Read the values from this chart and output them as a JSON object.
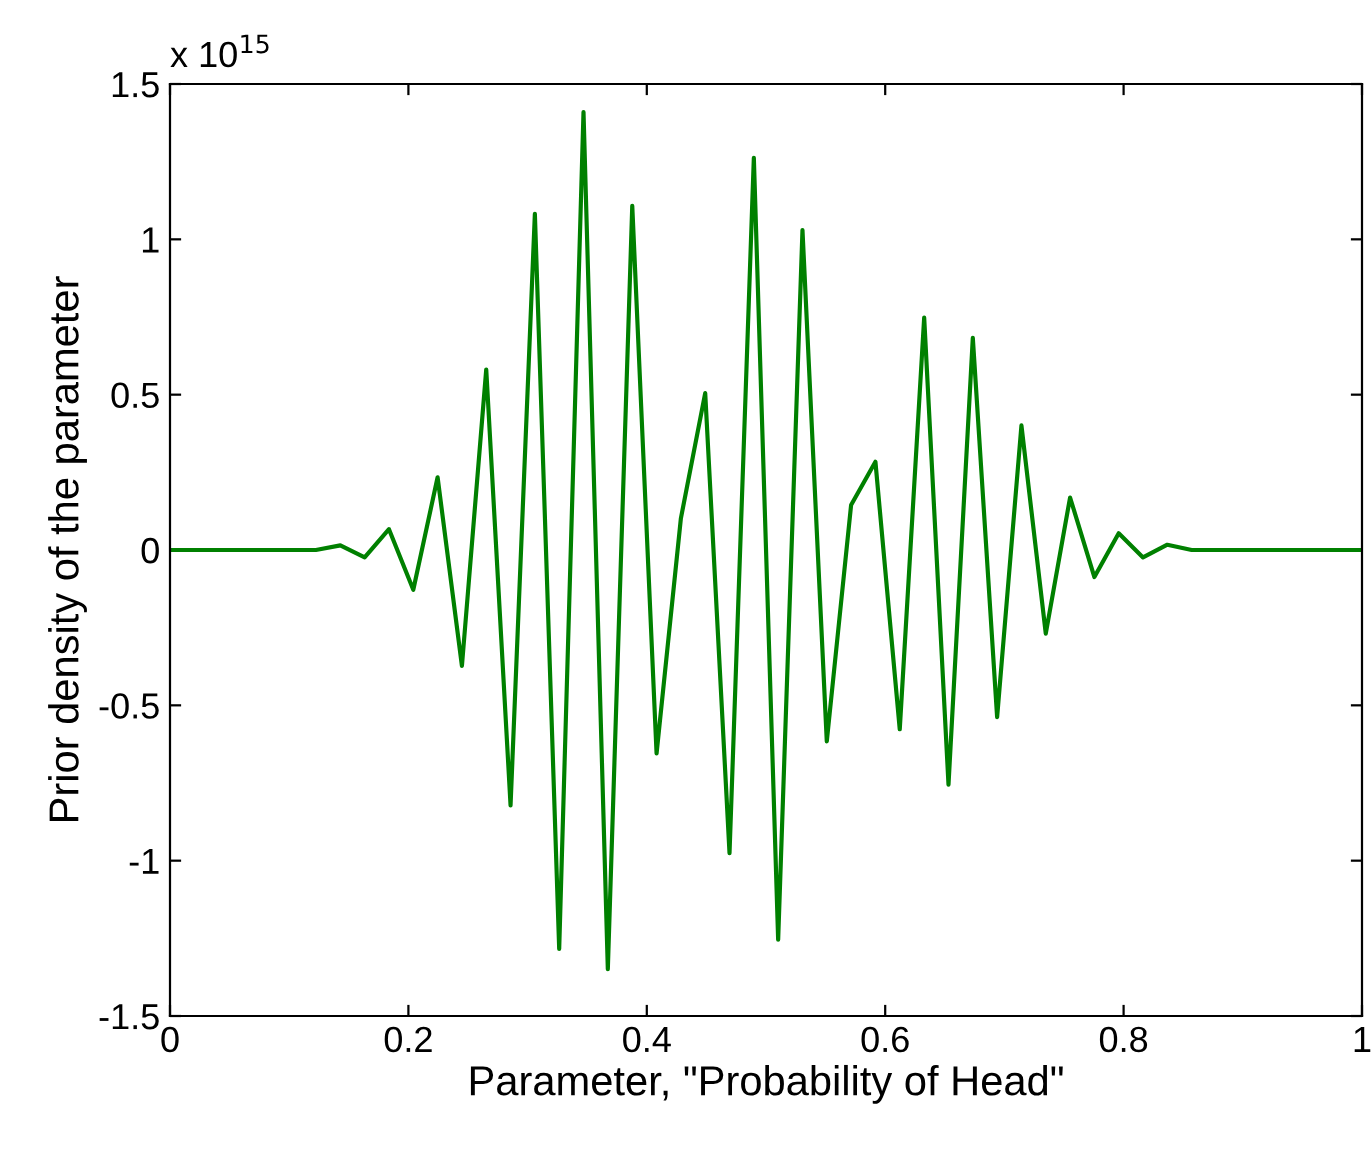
{
  "chart_data": {
    "type": "line",
    "xlabel": "Parameter, \"Probability of Head\"",
    "ylabel": "Prior density of the parameter",
    "annotations": [
      "x 10$^{15}$"
    ],
    "x": [
      0,
      0.0204,
      0.0408,
      0.0612,
      0.0816,
      0.102,
      0.1224,
      0.1429,
      0.1633,
      0.1837,
      0.2041,
      0.2245,
      0.2449,
      0.2653,
      0.2857,
      0.3061,
      0.3265,
      0.3469,
      0.3673,
      0.3878,
      0.4082,
      0.4286,
      0.449,
      0.4694,
      0.4898,
      0.5102,
      0.5306,
      0.551,
      0.5714,
      0.5918,
      0.6122,
      0.6327,
      0.6531,
      0.6735,
      0.6939,
      0.7143,
      0.7347,
      0.7551,
      0.7755,
      0.7959,
      0.8163,
      0.8367,
      0.8571,
      0.8776,
      0.898,
      0.9184,
      0.9388,
      0.9592,
      0.9796,
      1
    ],
    "series": [
      {
        "color": "#008000",
        "values": [
          0,
          0,
          0,
          0,
          0,
          0,
          0,
          0.015,
          -0.024,
          0.067,
          -0.128,
          0.234,
          -0.373,
          0.581,
          -0.822,
          1.082,
          -1.284,
          1.41,
          -1.349,
          1.108,
          -0.655,
          0.102,
          0.505,
          -0.976,
          1.262,
          -1.254,
          1.03,
          -0.616,
          0.145,
          0.284,
          -0.577,
          0.748,
          -0.755,
          0.683,
          -0.538,
          0.401,
          -0.269,
          0.169,
          -0.087,
          0.054,
          -0.024,
          0.017,
          0,
          0,
          0,
          0,
          0,
          0,
          0,
          0
        ]
      }
    ],
    "xlim": [
      0,
      1
    ],
    "xticks": [
      0,
      0.2,
      0.4,
      0.6,
      0.8,
      1
    ],
    "ylim": [
      -1.5,
      1.5
    ],
    "yticks": [
      -1.5,
      -1,
      -0.5,
      0,
      0.5,
      1,
      1.5
    ],
    "grid": false,
    "marker": "none",
    "line_style": "solid"
  }
}
